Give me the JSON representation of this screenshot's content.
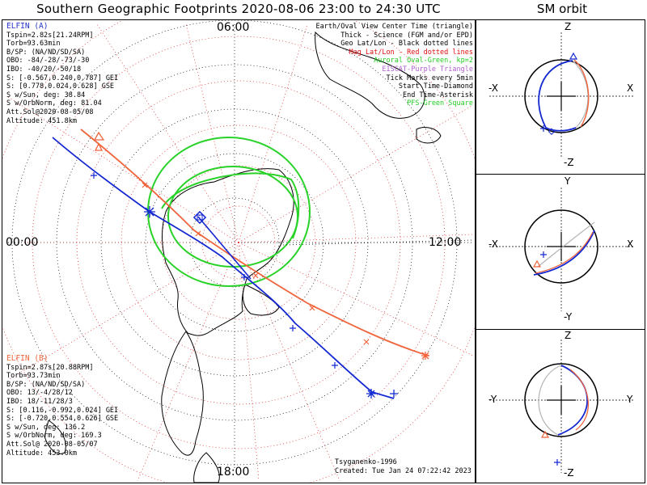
{
  "title": "Southern Geographic Footprints 2020-08-06 23:00 to 24:30 UTC",
  "sm_title": "SM orbit",
  "hour_labels": {
    "top": "06:00",
    "left": "00:00",
    "right": "12:00",
    "bottom": "18:00"
  },
  "elfin_a": {
    "name": "ELFIN (A)",
    "color": "#2432c8",
    "lines": [
      "Tspin=2.82s[21.24RPM]",
      "Torb=93.63min",
      "B/SP: (NA/ND/SD/SA)",
      "OBO: -84/-28/-73/-30",
      "IBO: -40/20/-50/18",
      "S: [-0.567,0.240,0.787] GEI",
      "S: [0.778,0.024,0.628] GSE",
      "S w/Sun, deg: 38.84",
      "S w/OrbNorm, deg: 81.04",
      "Att.Sol@2020-08-05/08",
      "Altitude: 451.8km"
    ]
  },
  "elfin_b": {
    "name": "ELFIN (B)",
    "color": "#f0643c",
    "lines": [
      "Tspin=2.87s[20.88RPM]",
      "Torb=93.73min",
      "B/SP: (NA/ND/SD/SA)",
      "OBO: 13/-4/28/12",
      "IBO: 18/-11/28/3",
      "S: [0.116,-0.992,0.024] GEI",
      "S: [-0.720,0.554,0.626] GSE",
      "S w/Sun, deg: 136.2",
      "S w/OrbNorm, deg: 169.3",
      "Att.Sol@ 2020-08-05/07",
      "Altitude: 453.0km"
    ]
  },
  "legend": [
    {
      "text": "Earth/Oval View Center Time (triangle)",
      "color": "#000000"
    },
    {
      "text": "Thick - Science (FGM and/or EPD)",
      "color": "#000000"
    },
    {
      "text": "Geo Lat/Lon - Black dotted lines",
      "color": "#000000"
    },
    {
      "text": "Mag Lat/Lon - Red dotted lines",
      "color": "#e01010"
    },
    {
      "text": "Auroral Oval-Green, kp=2",
      "color": "#22cc22"
    },
    {
      "text": "EISCAT-Purple Triangle",
      "color": "#b060d0"
    },
    {
      "text": "Tick Marks every 5min",
      "color": "#000000"
    },
    {
      "text": "Start Time-Diamond",
      "color": "#000000"
    },
    {
      "text": "End Time-Asterisk",
      "color": "#000000"
    },
    {
      "text": "PFS-Green Square",
      "color": "#22cc22"
    }
  ],
  "footer": {
    "model": "Tsyganenko-1996",
    "created": "Created: Tue Jan 24 07:22:42 2023"
  },
  "sm_panels": [
    {
      "top": "Z",
      "bottom": "-Z",
      "left": "-X",
      "right": "X"
    },
    {
      "top": "Y",
      "bottom": "-Y",
      "left": "-X",
      "right": "X"
    },
    {
      "top": "Z",
      "bottom": "-Z",
      "left": "-Y",
      "right": "Y"
    }
  ],
  "colors": {
    "track_a": "#1428d2",
    "track_b": "#f0643c",
    "oval": "#28d228",
    "grid_mag": "#e02020",
    "orbit_gray": "#b4b4b4"
  }
}
